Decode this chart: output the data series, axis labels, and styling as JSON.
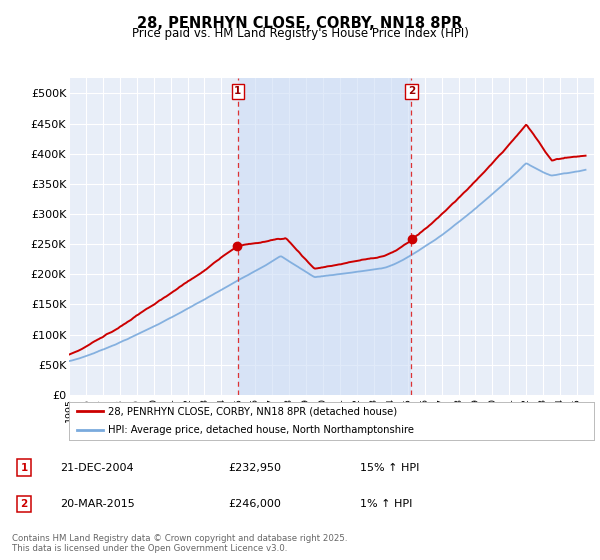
{
  "title_line1": "28, PENRHYN CLOSE, CORBY, NN18 8PR",
  "title_line2": "Price paid vs. HM Land Registry's House Price Index (HPI)",
  "ylim": [
    0,
    525000
  ],
  "yticks": [
    0,
    50000,
    100000,
    150000,
    200000,
    250000,
    300000,
    350000,
    400000,
    450000,
    500000
  ],
  "ytick_labels": [
    "£0",
    "£50K",
    "£100K",
    "£150K",
    "£200K",
    "£250K",
    "£300K",
    "£350K",
    "£400K",
    "£450K",
    "£500K"
  ],
  "background_color": "#ffffff",
  "plot_bg_color": "#e8eef8",
  "grid_color": "#ffffff",
  "red_line_color": "#cc0000",
  "blue_line_color": "#7aaadd",
  "transaction1_x": 2004.97,
  "transaction1_y": 232950,
  "transaction2_x": 2015.22,
  "transaction2_y": 246000,
  "vline_color": "#dd3333",
  "shade_color": "#ccddf5",
  "legend_label_red": "28, PENRHYN CLOSE, CORBY, NN18 8PR (detached house)",
  "legend_label_blue": "HPI: Average price, detached house, North Northamptonshire",
  "table_row1": [
    "1",
    "21-DEC-2004",
    "£232,950",
    "15% ↑ HPI"
  ],
  "table_row2": [
    "2",
    "20-MAR-2015",
    "£246,000",
    "1% ↑ HPI"
  ],
  "footer": "Contains HM Land Registry data © Crown copyright and database right 2025.\nThis data is licensed under the Open Government Licence v3.0.",
  "xmin": 1995,
  "xmax": 2026
}
